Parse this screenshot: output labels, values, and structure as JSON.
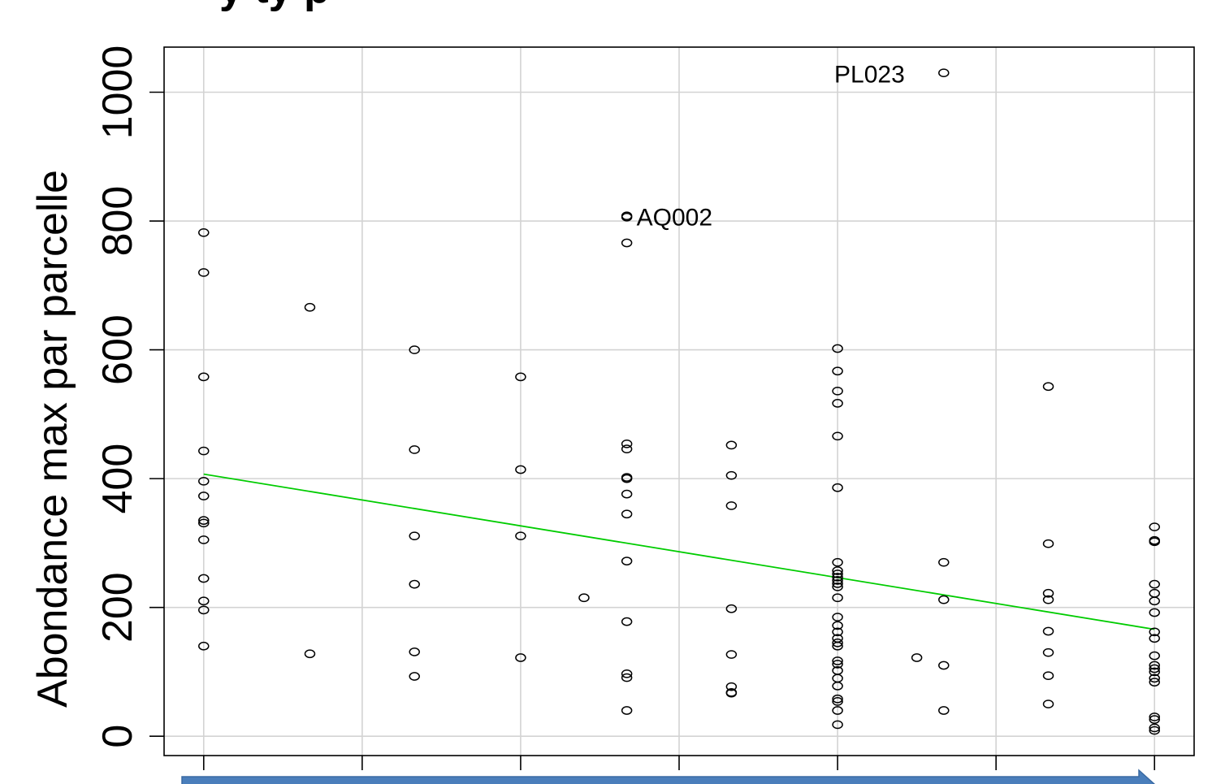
{
  "chart_data": {
    "type": "scatter",
    "title": "",
    "title_fragment": "y      ty p",
    "xlabel": "",
    "ylabel": "Abondance max par parcelle",
    "xlim": [
      0.75,
      7.25
    ],
    "ylim": [
      -30,
      1070
    ],
    "grid": true,
    "x_ticks": [
      1,
      2,
      3,
      4,
      5,
      6,
      7
    ],
    "y_ticks": [
      0,
      200,
      400,
      600,
      800,
      1000
    ],
    "y_tick_labels": [
      "0",
      "200",
      "400",
      "600",
      "800",
      "1000"
    ],
    "points": [
      [
        1,
        782
      ],
      [
        1,
        720
      ],
      [
        1,
        558
      ],
      [
        1,
        443
      ],
      [
        1,
        396
      ],
      [
        1,
        373
      ],
      [
        1,
        335
      ],
      [
        1,
        331
      ],
      [
        1,
        305
      ],
      [
        1,
        245
      ],
      [
        1,
        210
      ],
      [
        1,
        196
      ],
      [
        1,
        140
      ],
      [
        1.67,
        666
      ],
      [
        1.67,
        128
      ],
      [
        2.33,
        600
      ],
      [
        2.33,
        445
      ],
      [
        2.33,
        311
      ],
      [
        2.33,
        236
      ],
      [
        2.33,
        131
      ],
      [
        2.33,
        93
      ],
      [
        3,
        558
      ],
      [
        3,
        414
      ],
      [
        3,
        311
      ],
      [
        3,
        122
      ],
      [
        3.4,
        215
      ],
      [
        3.67,
        808
      ],
      [
        3.67,
        806
      ],
      [
        3.67,
        766
      ],
      [
        3.67,
        454
      ],
      [
        3.67,
        446
      ],
      [
        3.67,
        402
      ],
      [
        3.67,
        400
      ],
      [
        3.67,
        376
      ],
      [
        3.67,
        345
      ],
      [
        3.67,
        272
      ],
      [
        3.67,
        178
      ],
      [
        3.67,
        97
      ],
      [
        3.67,
        91
      ],
      [
        3.67,
        40
      ],
      [
        4.33,
        452
      ],
      [
        4.33,
        405
      ],
      [
        4.33,
        358
      ],
      [
        4.33,
        198
      ],
      [
        4.33,
        127
      ],
      [
        4.33,
        77
      ],
      [
        4.33,
        68
      ],
      [
        4.33,
        67
      ],
      [
        5,
        602
      ],
      [
        5,
        567
      ],
      [
        5,
        536
      ],
      [
        5,
        517
      ],
      [
        5,
        466
      ],
      [
        5,
        386
      ],
      [
        5,
        270
      ],
      [
        5,
        257
      ],
      [
        5,
        252
      ],
      [
        5,
        247
      ],
      [
        5,
        242
      ],
      [
        5,
        237
      ],
      [
        5,
        232
      ],
      [
        5,
        215
      ],
      [
        5,
        185
      ],
      [
        5,
        172
      ],
      [
        5,
        162
      ],
      [
        5,
        152
      ],
      [
        5,
        145
      ],
      [
        5,
        140
      ],
      [
        5,
        117
      ],
      [
        5,
        112
      ],
      [
        5,
        102
      ],
      [
        5,
        90
      ],
      [
        5,
        78
      ],
      [
        5,
        58
      ],
      [
        5,
        54
      ],
      [
        5,
        40
      ],
      [
        5,
        18
      ],
      [
        5.5,
        122
      ],
      [
        5.67,
        1030
      ],
      [
        5.67,
        270
      ],
      [
        5.67,
        212
      ],
      [
        5.67,
        110
      ],
      [
        5.67,
        40
      ],
      [
        6.33,
        543
      ],
      [
        6.33,
        299
      ],
      [
        6.33,
        222
      ],
      [
        6.33,
        212
      ],
      [
        6.33,
        163
      ],
      [
        6.33,
        130
      ],
      [
        6.33,
        94
      ],
      [
        6.33,
        50
      ],
      [
        7,
        325
      ],
      [
        7,
        304
      ],
      [
        7,
        302
      ],
      [
        7,
        236
      ],
      [
        7,
        222
      ],
      [
        7,
        210
      ],
      [
        7,
        192
      ],
      [
        7,
        162
      ],
      [
        7,
        152
      ],
      [
        7,
        125
      ],
      [
        7,
        110
      ],
      [
        7,
        105
      ],
      [
        7,
        100
      ],
      [
        7,
        90
      ],
      [
        7,
        84
      ],
      [
        7,
        30
      ],
      [
        7,
        26
      ],
      [
        7,
        13
      ],
      [
        7,
        9
      ]
    ],
    "annotations": [
      {
        "text": "PL023",
        "x": 5.67,
        "y": 1030,
        "side": "left"
      },
      {
        "text": "AQ002",
        "x": 3.67,
        "y": 808,
        "side": "right"
      }
    ],
    "fit_line": {
      "color": "#00cc00",
      "x": [
        1,
        7
      ],
      "y": [
        407,
        166
      ]
    },
    "arrow": {
      "color": "#4a7ebb",
      "direction": "right"
    }
  }
}
